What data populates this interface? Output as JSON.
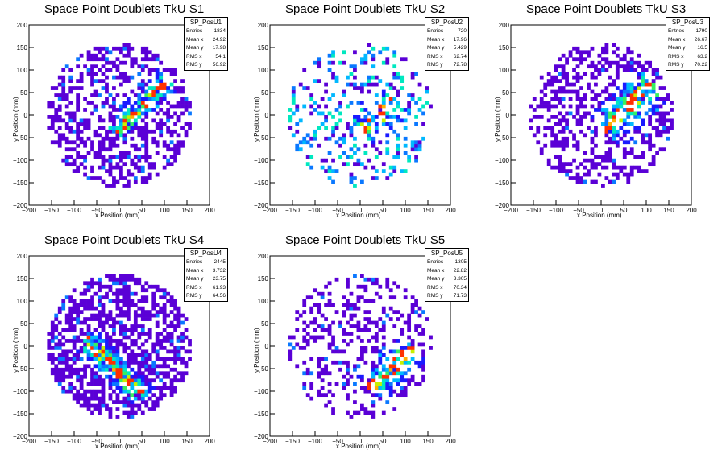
{
  "chart_data": [
    {
      "type": "heatmap",
      "title": "Space Point Doublets TkU S1",
      "xlabel": "x Position (mm)",
      "ylabel": "y Position (mm)",
      "xlim": [
        -200,
        200
      ],
      "ylim": [
        -200,
        200
      ],
      "xticks": [
        "−200",
        "−150",
        "−100",
        "−50",
        "0",
        "50",
        "100",
        "150",
        "200"
      ],
      "yticks": [
        "200",
        "150",
        "100",
        "50",
        "0",
        "−50",
        "−100",
        "−150",
        "−200"
      ],
      "stats": {
        "name": "SP_PosU1",
        "rows": [
          [
            "Entries",
            "1834"
          ],
          [
            "Mean x",
            "24.92"
          ],
          [
            "Mean y",
            "17.98"
          ],
          [
            "RMS x",
            "54.1"
          ],
          [
            "RMS y",
            "56.92"
          ]
        ]
      },
      "band": {
        "direction": 1,
        "cx": 50,
        "cy": 20,
        "length": 170,
        "width": 30
      },
      "density": 0.55,
      "sparse": 0.2
    },
    {
      "type": "heatmap",
      "title": "Space Point Doublets TkU S2",
      "xlabel": "x Position (mm)",
      "ylabel": "y Position (mm)",
      "xlim": [
        -200,
        200
      ],
      "ylim": [
        -200,
        200
      ],
      "xticks": [
        "−200",
        "−150",
        "−100",
        "−50",
        "0",
        "50",
        "100",
        "150",
        "200"
      ],
      "yticks": [
        "200",
        "150",
        "100",
        "50",
        "0",
        "−50",
        "−100",
        "−150",
        "−200"
      ],
      "stats": {
        "name": "SP_PosU2",
        "rows": [
          [
            "Entries",
            "720"
          ],
          [
            "Mean x",
            "17.96"
          ],
          [
            "Mean y",
            "5.429"
          ],
          [
            "RMS x",
            "62.74"
          ],
          [
            "RMS y",
            "72.78"
          ]
        ]
      },
      "band": {
        "direction": 1,
        "cx": 40,
        "cy": 0,
        "length": 110,
        "width": 40
      },
      "density": 0.45,
      "sparse": 0.45
    },
    {
      "type": "heatmap",
      "title": "Space Point Doublets TkU S3",
      "xlabel": "x Position (mm)",
      "ylabel": "y Position (mm)",
      "xlim": [
        -200,
        200
      ],
      "ylim": [
        -200,
        200
      ],
      "xticks": [
        "−200",
        "−150",
        "−100",
        "−50",
        "0",
        "50",
        "100",
        "150",
        "200"
      ],
      "yticks": [
        "200",
        "150",
        "100",
        "50",
        "0",
        "−50",
        "−100",
        "−150",
        "−200"
      ],
      "stats": {
        "name": "SP_PosU3",
        "rows": [
          [
            "Entries",
            "1790"
          ],
          [
            "Mean x",
            "26.67"
          ],
          [
            "Mean y",
            "16.5"
          ],
          [
            "RMS x",
            "63.2"
          ],
          [
            "RMS y",
            "70.22"
          ]
        ]
      },
      "band": {
        "direction": 1,
        "cx": 60,
        "cy": 20,
        "length": 150,
        "width": 50
      },
      "density": 0.6,
      "sparse": 0.3
    },
    {
      "type": "heatmap",
      "title": "Space Point Doublets TkU S4",
      "xlabel": "x Position (mm)",
      "ylabel": "y Position (mm)",
      "xlim": [
        -200,
        200
      ],
      "ylim": [
        -200,
        200
      ],
      "xticks": [
        "−200",
        "−150",
        "−100",
        "−50",
        "0",
        "50",
        "100",
        "150",
        "200"
      ],
      "yticks": [
        "200",
        "150",
        "100",
        "50",
        "0",
        "−50",
        "−100",
        "−150",
        "−200"
      ],
      "stats": {
        "name": "SP_PosU4",
        "rows": [
          [
            "Entries",
            "2445"
          ],
          [
            "Mean x",
            "−3.732"
          ],
          [
            "Mean y",
            "−23.75"
          ],
          [
            "RMS x",
            "61.93"
          ],
          [
            "RMS y",
            "64.56"
          ]
        ]
      },
      "band": {
        "direction": -1,
        "cx": -10,
        "cy": -50,
        "length": 190,
        "width": 32
      },
      "density": 0.7,
      "sparse": 0.15
    },
    {
      "type": "heatmap",
      "title": "Space Point Doublets TkU S5",
      "xlabel": "x Position (mm)",
      "ylabel": "y Position (mm)",
      "xlim": [
        -200,
        200
      ],
      "ylim": [
        -200,
        200
      ],
      "xticks": [
        "−200",
        "−150",
        "−100",
        "−50",
        "0",
        "50",
        "100",
        "150",
        "200"
      ],
      "yticks": [
        "200",
        "150",
        "100",
        "50",
        "0",
        "−50",
        "−100",
        "−150",
        "−200"
      ],
      "stats": {
        "name": "SP_PosU5",
        "rows": [
          [
            "Entries",
            "1305"
          ],
          [
            "Mean x",
            "22.82"
          ],
          [
            "Mean y",
            "−3.305"
          ],
          [
            "RMS x",
            "70.34"
          ],
          [
            "RMS y",
            "71.73"
          ]
        ]
      },
      "band": {
        "direction": 1,
        "cx": 70,
        "cy": -50,
        "length": 140,
        "width": 40
      },
      "density": 0.5,
      "sparse": 0.35
    }
  ]
}
